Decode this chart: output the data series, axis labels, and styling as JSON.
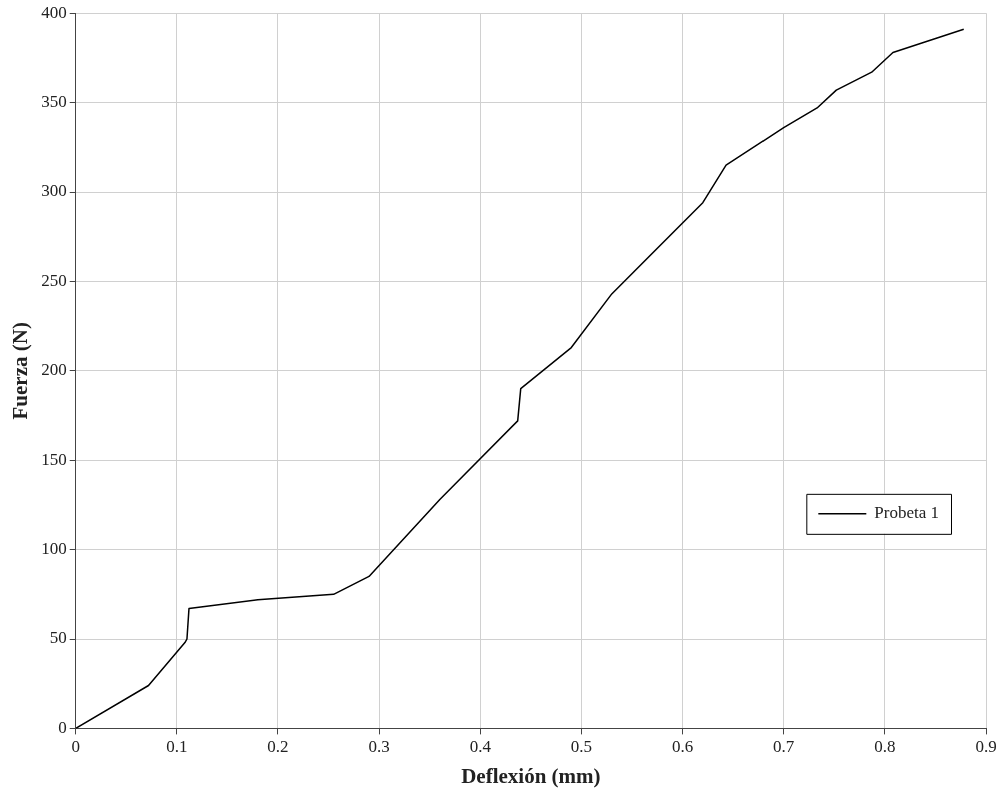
{
  "chart_data": {
    "type": "line",
    "xlabel": "Deflexión (mm)",
    "ylabel": "Fuerza (N)",
    "xlim": [
      0,
      0.9
    ],
    "xticks": [
      0,
      0.1,
      0.2,
      0.3,
      0.4,
      0.5,
      0.6,
      0.7,
      0.8,
      0.9
    ],
    "ylim": [
      0,
      400
    ],
    "yticks": [
      0,
      50,
      100,
      150,
      200,
      250,
      300,
      350,
      400
    ],
    "grid": true,
    "legend": "right",
    "marker": "none",
    "line_style": "solid",
    "series": [
      {
        "name": "Probeta 1",
        "color": "#000000",
        "x": [
          0,
          0.072,
          0.108,
          0.11,
          0.112,
          0.18,
          0.255,
          0.29,
          0.36,
          0.437,
          0.44,
          0.49,
          0.53,
          0.62,
          0.643,
          0.7,
          0.733,
          0.752,
          0.787,
          0.808,
          0.878
        ],
        "values": [
          0,
          24,
          48,
          50,
          67,
          72,
          75,
          85,
          128,
          172,
          190,
          213,
          243,
          294,
          315,
          336,
          347,
          357,
          367,
          378,
          391
        ]
      }
    ]
  }
}
